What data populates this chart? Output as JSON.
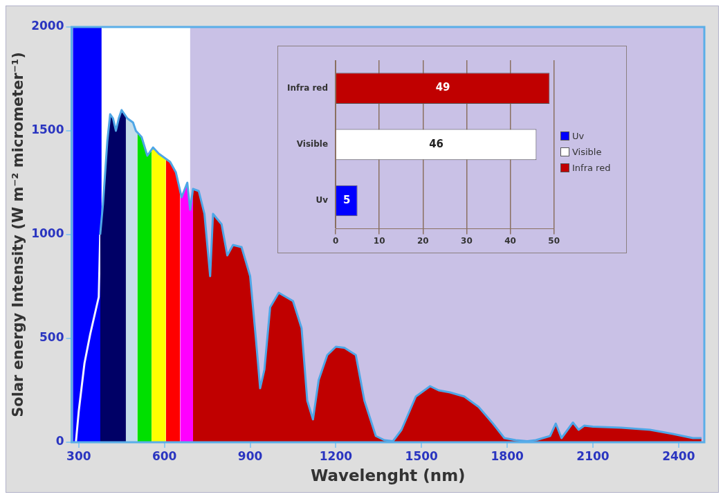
{
  "chart_data": [
    {
      "type": "area",
      "xlabel": "Wavelenght (nm)",
      "ylabel": "Solar energy Intensity (W m⁻² micrometer⁻¹)",
      "xlim": [
        275,
        2490
      ],
      "xticks": [
        300,
        600,
        900,
        1200,
        1500,
        1800,
        2100,
        2400
      ],
      "ylim": [
        0,
        2000
      ],
      "yticks": [
        0,
        500,
        1000,
        1500,
        2000
      ],
      "grid": false,
      "legend": false,
      "bands": [
        {
          "axis": "x",
          "from": 280,
          "to": 380,
          "color": "#0000ff"
        },
        {
          "axis": "x",
          "from": 380,
          "to": 690,
          "color": "#ffffff"
        }
      ],
      "series": [
        {
          "type": "line",
          "color": "#f4f4ff",
          "x": [
            290,
            300,
            320,
            340,
            360,
            370,
            375
          ],
          "values": [
            0,
            150,
            380,
            520,
            640,
            700,
            1000
          ]
        },
        {
          "type": "area",
          "color": "#000066",
          "x": [
            375,
            385,
            400,
            410,
            420,
            430,
            440,
            450,
            460,
            465
          ],
          "values": [
            1000,
            1150,
            1450,
            1580,
            1560,
            1500,
            1560,
            1600,
            1580,
            1570
          ]
        },
        {
          "type": "area",
          "color": "#c4dcea",
          "x": [
            465,
            470,
            480,
            490,
            500,
            505
          ],
          "values": [
            1570,
            1560,
            1550,
            1540,
            1500,
            1495
          ]
        },
        {
          "type": "area",
          "color": "#00e000",
          "x": [
            505,
            520,
            540,
            555
          ],
          "values": [
            1495,
            1470,
            1380,
            1410
          ]
        },
        {
          "type": "area",
          "color": "#ffff00",
          "x": [
            555,
            560,
            580,
            600,
            605
          ],
          "values": [
            1410,
            1420,
            1390,
            1370,
            1365
          ]
        },
        {
          "type": "area",
          "color": "#ff0000",
          "x": [
            605,
            620,
            640,
            655
          ],
          "values": [
            1365,
            1350,
            1300,
            1210
          ]
        },
        {
          "type": "area",
          "color": "#ff00ff",
          "x": [
            655,
            660,
            680,
            690,
            700
          ],
          "values": [
            1210,
            1180,
            1250,
            1120,
            1220
          ]
        },
        {
          "type": "area",
          "color": "#c00000",
          "x": [
            700,
            720,
            740,
            760,
            770,
            800,
            820,
            840,
            870,
            900,
            920,
            935,
            950,
            970,
            1000,
            1050,
            1080,
            1100,
            1120,
            1140,
            1170,
            1200,
            1230,
            1270,
            1300,
            1340,
            1370,
            1400,
            1430,
            1480,
            1530,
            1560,
            1600,
            1650,
            1700,
            1750,
            1790,
            1830,
            1870,
            1900,
            1950,
            1970,
            1990,
            2030,
            2050,
            2070,
            2100,
            2200,
            2300,
            2380,
            2450,
            2480
          ],
          "values": [
            1220,
            1210,
            1100,
            800,
            1100,
            1050,
            900,
            950,
            940,
            800,
            500,
            260,
            350,
            650,
            720,
            680,
            550,
            200,
            110,
            300,
            420,
            460,
            455,
            420,
            200,
            30,
            10,
            5,
            60,
            220,
            270,
            250,
            240,
            220,
            170,
            90,
            20,
            10,
            5,
            10,
            30,
            90,
            20,
            95,
            60,
            80,
            75,
            70,
            60,
            40,
            20,
            20
          ]
        },
        {
          "type": "line",
          "color": "#4ea6e6",
          "x": [
            375,
            385,
            400,
            410,
            420,
            430,
            440,
            450,
            460,
            470,
            480,
            490,
            500,
            520,
            540,
            560,
            580,
            600,
            620,
            640,
            660,
            680,
            690,
            700,
            720,
            740,
            760,
            770,
            800,
            820,
            840,
            870,
            900,
            920,
            935,
            950,
            970,
            1000,
            1050,
            1080,
            1100,
            1120,
            1140,
            1170,
            1200,
            1230,
            1270,
            1300,
            1340,
            1370,
            1400,
            1430,
            1480,
            1530,
            1560,
            1600,
            1650,
            1700,
            1750,
            1790,
            1830,
            1870,
            1900,
            1950,
            1970,
            1990,
            2030,
            2050,
            2070,
            2100,
            2200,
            2300,
            2380,
            2450,
            2480
          ],
          "values": [
            1000,
            1150,
            1450,
            1580,
            1560,
            1500,
            1560,
            1600,
            1580,
            1560,
            1550,
            1540,
            1500,
            1470,
            1380,
            1420,
            1390,
            1370,
            1350,
            1300,
            1180,
            1250,
            1120,
            1220,
            1210,
            1100,
            800,
            1100,
            1050,
            900,
            950,
            940,
            800,
            500,
            260,
            350,
            650,
            720,
            680,
            550,
            200,
            110,
            300,
            420,
            460,
            455,
            420,
            200,
            30,
            10,
            5,
            60,
            220,
            270,
            250,
            240,
            220,
            170,
            90,
            20,
            10,
            5,
            10,
            30,
            90,
            20,
            95,
            60,
            80,
            75,
            70,
            60,
            40,
            20,
            20
          ]
        }
      ]
    },
    {
      "type": "bar",
      "orientation": "horizontal",
      "categories": [
        "Infra red",
        "Visible",
        "Uv"
      ],
      "series": [
        {
          "name": "Uv",
          "color": "#0000ff",
          "values": [
            null,
            null,
            5
          ]
        },
        {
          "name": "Visible",
          "color": "#ffffff",
          "values": [
            null,
            46,
            null
          ]
        },
        {
          "name": "Infra red",
          "color": "#c00000",
          "values": [
            49,
            null,
            null
          ]
        }
      ],
      "xlim": [
        0,
        50
      ],
      "xticks": [
        0,
        10,
        20,
        30,
        40,
        50
      ],
      "grid": "x",
      "data_labels": true,
      "legend": "right"
    }
  ]
}
